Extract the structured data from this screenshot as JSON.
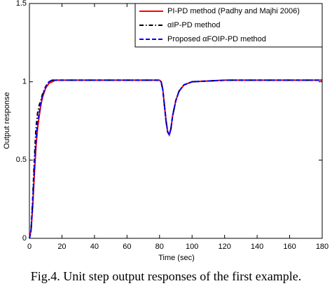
{
  "chart_data": {
    "type": "line",
    "caption": "Fig.4. Unit step output responses of the first example.",
    "xlabel": "Time (sec)",
    "ylabel": "Output response",
    "x": [
      0,
      1,
      2,
      3,
      4,
      5,
      6,
      7,
      8,
      10,
      12,
      14,
      16,
      20,
      40,
      60,
      80,
      81,
      82,
      83,
      84,
      85,
      86,
      87,
      88,
      90,
      92,
      95,
      100,
      120,
      140,
      160,
      180
    ],
    "series": [
      {
        "name": "PI-PD method (Padhy and Majhi 2006)",
        "color": "#ff0000",
        "dash": "solid",
        "values": [
          0,
          0.05,
          0.2,
          0.4,
          0.58,
          0.7,
          0.78,
          0.85,
          0.9,
          0.96,
          0.99,
          1.0,
          1.01,
          1.01,
          1.01,
          1.01,
          1.01,
          1.0,
          0.95,
          0.85,
          0.75,
          0.68,
          0.66,
          0.7,
          0.78,
          0.88,
          0.94,
          0.98,
          1.0,
          1.01,
          1.01,
          1.01,
          1.01
        ]
      },
      {
        "name": "αIP-PD method",
        "color": "#000000",
        "dash": "dashdot",
        "values": [
          0,
          0.05,
          0.25,
          0.5,
          0.7,
          0.8,
          0.85,
          0.88,
          0.92,
          0.97,
          1.0,
          1.01,
          1.01,
          1.01,
          1.01,
          1.01,
          1.01,
          1.0,
          0.95,
          0.85,
          0.75,
          0.68,
          0.66,
          0.7,
          0.78,
          0.88,
          0.94,
          0.98,
          1.0,
          1.01,
          1.01,
          1.01,
          1.01
        ]
      },
      {
        "name": "Proposed αFOIP-PD method",
        "color": "#0000ff",
        "dash": "dashed",
        "values": [
          0,
          0.05,
          0.22,
          0.45,
          0.62,
          0.74,
          0.8,
          0.86,
          0.91,
          0.97,
          1.0,
          1.01,
          1.01,
          1.01,
          1.01,
          1.01,
          1.01,
          1.0,
          0.95,
          0.85,
          0.75,
          0.68,
          0.66,
          0.7,
          0.78,
          0.88,
          0.94,
          0.98,
          1.0,
          1.01,
          1.01,
          1.01,
          1.01
        ]
      }
    ],
    "xlim": [
      0,
      180
    ],
    "xticks": [
      0,
      20,
      40,
      60,
      80,
      100,
      120,
      140,
      160,
      180
    ],
    "ylim": [
      0,
      1.5
    ],
    "yticks": [
      0,
      0.5,
      1,
      1.5
    ],
    "grid": false,
    "legend": "top-right"
  }
}
